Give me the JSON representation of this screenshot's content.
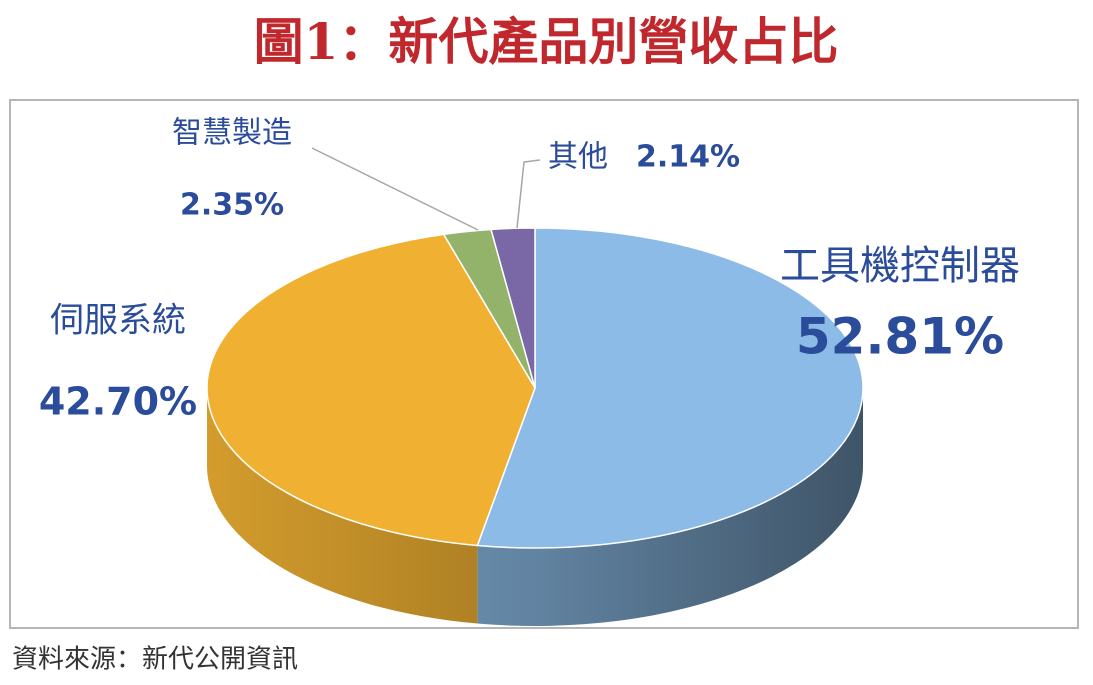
{
  "chart_data": {
    "type": "pie",
    "title": "圖1：新代產品別營收占比",
    "categories": [
      "工具機控制器",
      "伺服系統",
      "智慧製造",
      "其他"
    ],
    "values": [
      52.81,
      42.7,
      2.35,
      2.14
    ],
    "value_labels": [
      "52.81%",
      "42.70%",
      "2.35%",
      "2.14%"
    ],
    "colors": [
      "#8bbbe6",
      "#f0b132",
      "#93b26a",
      "#7a67a6"
    ],
    "source": "資料來源：新代公開資訊"
  }
}
